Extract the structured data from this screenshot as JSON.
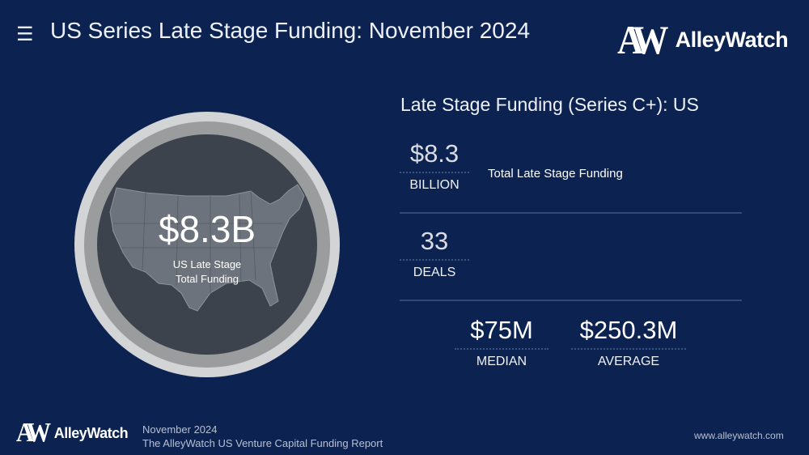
{
  "header": {
    "menu_icon": "hamburger-menu-icon",
    "title": "US Series Late Stage Funding: November 2024",
    "logo": "AlleyWatch",
    "logo_mark": "AW"
  },
  "circle": {
    "value": "$8.3B",
    "label_line1": "US Late Stage",
    "label_line2": "Total Funding",
    "map": "us-map"
  },
  "stats": {
    "section_title": "Late Stage Funding (Series C+): US",
    "total": {
      "value": "$8.3",
      "unit": "BILLION",
      "description": "Total Late Stage Funding"
    },
    "deals": {
      "value": "33",
      "unit": "DEALS"
    },
    "median": {
      "value": "$75M",
      "unit": "MEDIAN"
    },
    "average": {
      "value": "$250.3M",
      "unit": "AVERAGE"
    }
  },
  "footer": {
    "logo": "AlleyWatch",
    "logo_mark": "AW",
    "date": "November 2024",
    "report": "The AlleyWatch US Venture Capital Funding Report",
    "website": "www.alleywatch.com"
  },
  "colors": {
    "background": "#0c2250",
    "ring": "#d2d4d6",
    "inner": "#3d434d"
  }
}
